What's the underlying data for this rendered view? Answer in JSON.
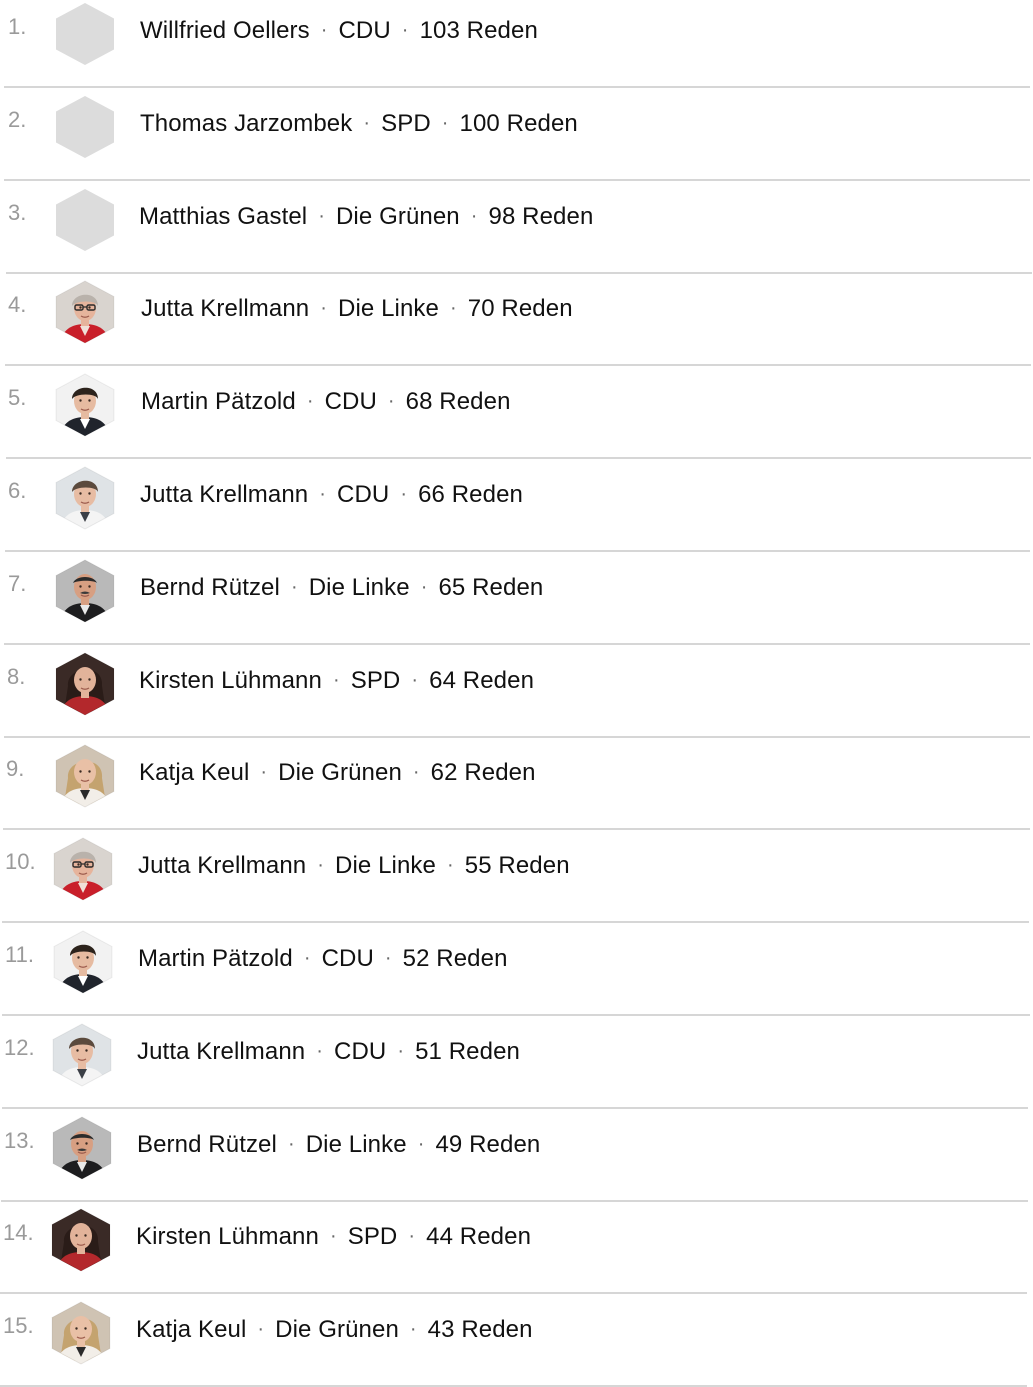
{
  "separator": "·",
  "colors": {
    "divider": "#d6d6d6",
    "rank_text": "#9a9a9a",
    "name_text": "#111111",
    "placeholder_avatar": "#dcdcdc"
  },
  "speakers": [
    {
      "rank": "1.",
      "name": "Willfried Oellers",
      "party": "CDU",
      "speeches": "103 Reden",
      "avatar": "placeholder-hexagon-icon"
    },
    {
      "rank": "2.",
      "name": "Thomas Jarzombek",
      "party": "SPD",
      "speeches": "100 Reden",
      "avatar": "placeholder-hexagon-icon"
    },
    {
      "rank": "3.",
      "name": "Matthias Gastel",
      "party": "Die Grünen",
      "speeches": "98 Reden",
      "avatar": "placeholder-hexagon-icon"
    },
    {
      "rank": "4.",
      "name": "Jutta Krellmann",
      "party": "Die Linke",
      "speeches": "70 Reden",
      "avatar": "portrait-woman-glasses-red-scarf"
    },
    {
      "rank": "5.",
      "name": "Martin Pätzold",
      "party": "CDU",
      "speeches": "68 Reden",
      "avatar": "portrait-man-dark-hair-suit"
    },
    {
      "rank": "6.",
      "name": "Jutta Krellmann",
      "party": "CDU",
      "speeches": "66 Reden",
      "avatar": "portrait-man-short-hair-shirt"
    },
    {
      "rank": "7.",
      "name": "Bernd Rützel",
      "party": "Die Linke",
      "speeches": "65 Reden",
      "avatar": "portrait-man-mustache-suit"
    },
    {
      "rank": "8.",
      "name": "Kirsten Lühmann",
      "party": "SPD",
      "speeches": "64 Reden",
      "avatar": "portrait-woman-dark-hair-red"
    },
    {
      "rank": "9.",
      "name": "Katja Keul",
      "party": "Die Grünen",
      "speeches": "62 Reden",
      "avatar": "portrait-woman-blonde-hair"
    },
    {
      "rank": "10.",
      "name": "Jutta Krellmann",
      "party": "Die Linke",
      "speeches": "55 Reden",
      "avatar": "portrait-woman-glasses-red-scarf"
    },
    {
      "rank": "11.",
      "name": "Martin Pätzold",
      "party": "CDU",
      "speeches": "52 Reden",
      "avatar": "portrait-man-dark-hair-suit"
    },
    {
      "rank": "12.",
      "name": "Jutta Krellmann",
      "party": "CDU",
      "speeches": "51 Reden",
      "avatar": "portrait-man-short-hair-shirt"
    },
    {
      "rank": "13.",
      "name": "Bernd Rützel",
      "party": "Die Linke",
      "speeches": "49 Reden",
      "avatar": "portrait-man-mustache-suit"
    },
    {
      "rank": "14.",
      "name": "Kirsten Lühmann",
      "party": "SPD",
      "speeches": "44 Reden",
      "avatar": "portrait-woman-dark-hair-red"
    },
    {
      "rank": "15.",
      "name": "Katja Keul",
      "party": "Die Grünen",
      "speeches": "43 Reden",
      "avatar": "portrait-woman-blonde-hair"
    }
  ]
}
